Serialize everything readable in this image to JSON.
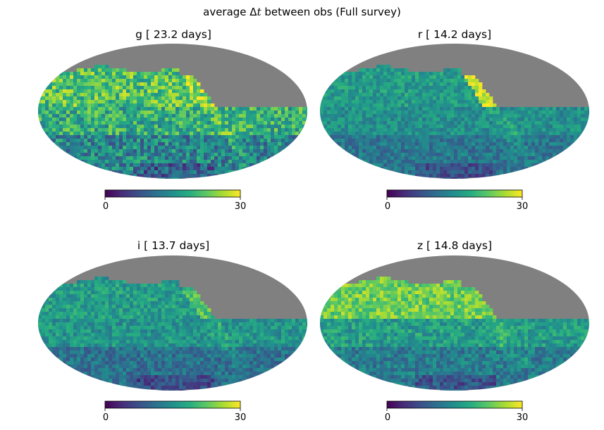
{
  "suptitle": {
    "prefix": "average Δ",
    "symbol": "t",
    "suffix": " between obs (Full survey)"
  },
  "colors": {
    "masked": "#808080",
    "colormap": "viridis",
    "viridis_stops": [
      "#440154",
      "#472c7a",
      "#3b518b",
      "#2c718e",
      "#21908d",
      "#27ad81",
      "#5cc863",
      "#aadc32",
      "#fde725"
    ]
  },
  "chart_data": [
    {
      "type": "heatmap",
      "projection": "mollweide",
      "title": "g [ 23.2 days]",
      "band": "g",
      "median_days": 23.2,
      "colorbar": {
        "min": 0,
        "max": 30,
        "tick_labels": [
          "0",
          "30"
        ]
      }
    },
    {
      "type": "heatmap",
      "projection": "mollweide",
      "title": "r [ 14.2 days]",
      "band": "r",
      "median_days": 14.2,
      "colorbar": {
        "min": 0,
        "max": 30,
        "tick_labels": [
          "0",
          "30"
        ]
      }
    },
    {
      "type": "heatmap",
      "projection": "mollweide",
      "title": "i [ 13.7 days]",
      "band": "i",
      "median_days": 13.7,
      "colorbar": {
        "min": 0,
        "max": 30,
        "tick_labels": [
          "0",
          "30"
        ]
      }
    },
    {
      "type": "heatmap",
      "projection": "mollweide",
      "title": "z [ 14.8 days]",
      "band": "z",
      "median_days": 14.8,
      "colorbar": {
        "min": 0,
        "max": 30,
        "tick_labels": [
          "0",
          "30"
        ]
      }
    }
  ]
}
